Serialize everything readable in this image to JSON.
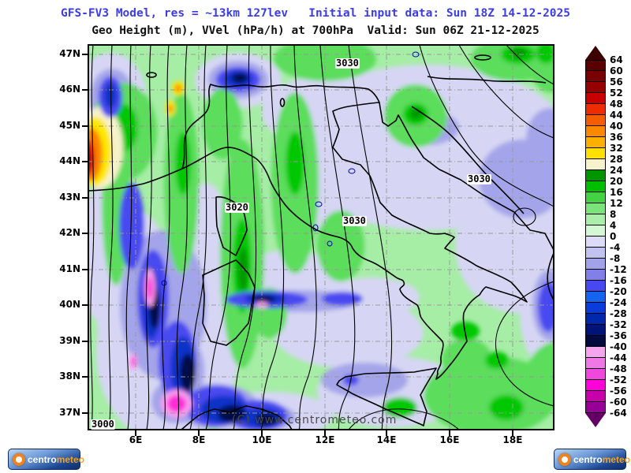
{
  "header": {
    "model_line": "GFS-FV3 Model, res = ~13km 127lev   Initial input data: Sun 18Z 14-12-2025",
    "field_line": "Geo Height (m), VVel (hPa/h) at 700hPa  Valid: Sun 06Z 21-12-2025",
    "model_line_color": "#3c3ce8",
    "field_line_color": "#111111"
  },
  "map": {
    "lat_labels": [
      "47N",
      "46N",
      "45N",
      "44N",
      "43N",
      "42N",
      "41N",
      "40N",
      "39N",
      "38N",
      "37N"
    ],
    "lon_labels": [
      "6E",
      "8E",
      "10E",
      "12E",
      "14E",
      "16E",
      "18E"
    ],
    "contour_labels": [
      "3030",
      "3030",
      "3030",
      "3020",
      "3000"
    ],
    "watermark": "(C) www.centrometeo.com"
  },
  "colorbar": {
    "unit_values": [
      "64",
      "60",
      "56",
      "52",
      "48",
      "44",
      "40",
      "36",
      "32",
      "28",
      "24",
      "20",
      "16",
      "12",
      "8",
      "4",
      "0",
      "-4",
      "-8",
      "-12",
      "-16",
      "-20",
      "-24",
      "-28",
      "-32",
      "-36",
      "-40",
      "-44",
      "-48",
      "-52",
      "-56",
      "-60",
      "-64"
    ],
    "colors": [
      "#5a0000",
      "#780000",
      "#960000",
      "#c80000",
      "#ee2c00",
      "#f55e00",
      "#fa8800",
      "#fbb000",
      "#ffe000",
      "#f8f2cc",
      "#009600",
      "#00be00",
      "#44d244",
      "#7ce27c",
      "#aaeeaa",
      "#d4f7d4",
      "#dcdcf8",
      "#c2c2f0",
      "#a2a2e8",
      "#8080e8",
      "#4848f0",
      "#1464f0",
      "#0a3cdc",
      "#0028aa",
      "#001478",
      "#000a3c",
      "#f5a5ec",
      "#f078e6",
      "#f048dc",
      "#ff00d8",
      "#c800aa",
      "#960096"
    ],
    "above_max_color": "#3c0000",
    "below_min_color": "#640064"
  },
  "logos": {
    "left": {
      "prefix": "centro",
      "suffix": "meteo"
    },
    "right": {
      "prefix": "centro",
      "suffix": "meteo"
    }
  }
}
